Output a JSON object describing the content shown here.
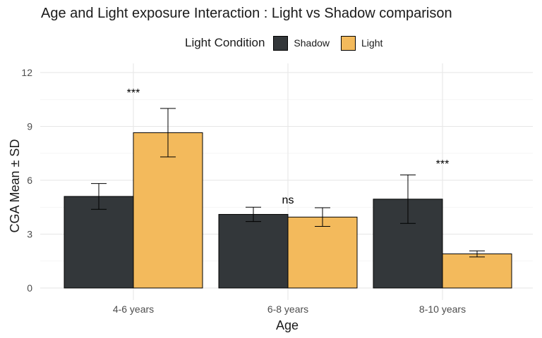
{
  "chart_data": {
    "type": "bar",
    "title": "Age and Light exposure Interaction : Light vs Shadow comparison",
    "xlabel": "Age",
    "ylabel": "CGA Mean ± SD",
    "categories": [
      "4-6 years",
      "6-8 years",
      "8-10 years"
    ],
    "ylim": [
      0,
      12
    ],
    "yticks": [
      0,
      3,
      6,
      9,
      12
    ],
    "grid": true,
    "legend": {
      "title": "Light Condition",
      "placement": "top",
      "entries": [
        "Shadow",
        "Light"
      ]
    },
    "series": [
      {
        "name": "Shadow",
        "color": "#33373a",
        "values": [
          5.1,
          4.1,
          4.95
        ],
        "sd": [
          0.72,
          0.4,
          1.35
        ]
      },
      {
        "name": "Light",
        "color": "#f3ba5c",
        "values": [
          8.65,
          3.95,
          1.9
        ],
        "sd": [
          1.35,
          0.52,
          0.17
        ]
      }
    ],
    "annotations": [
      {
        "category": "4-6 years",
        "text": "***",
        "y": 10.9
      },
      {
        "category": "6-8 years",
        "text": "ns",
        "y": 4.95
      },
      {
        "category": "8-10 years",
        "text": "***",
        "y": 6.95
      }
    ]
  }
}
